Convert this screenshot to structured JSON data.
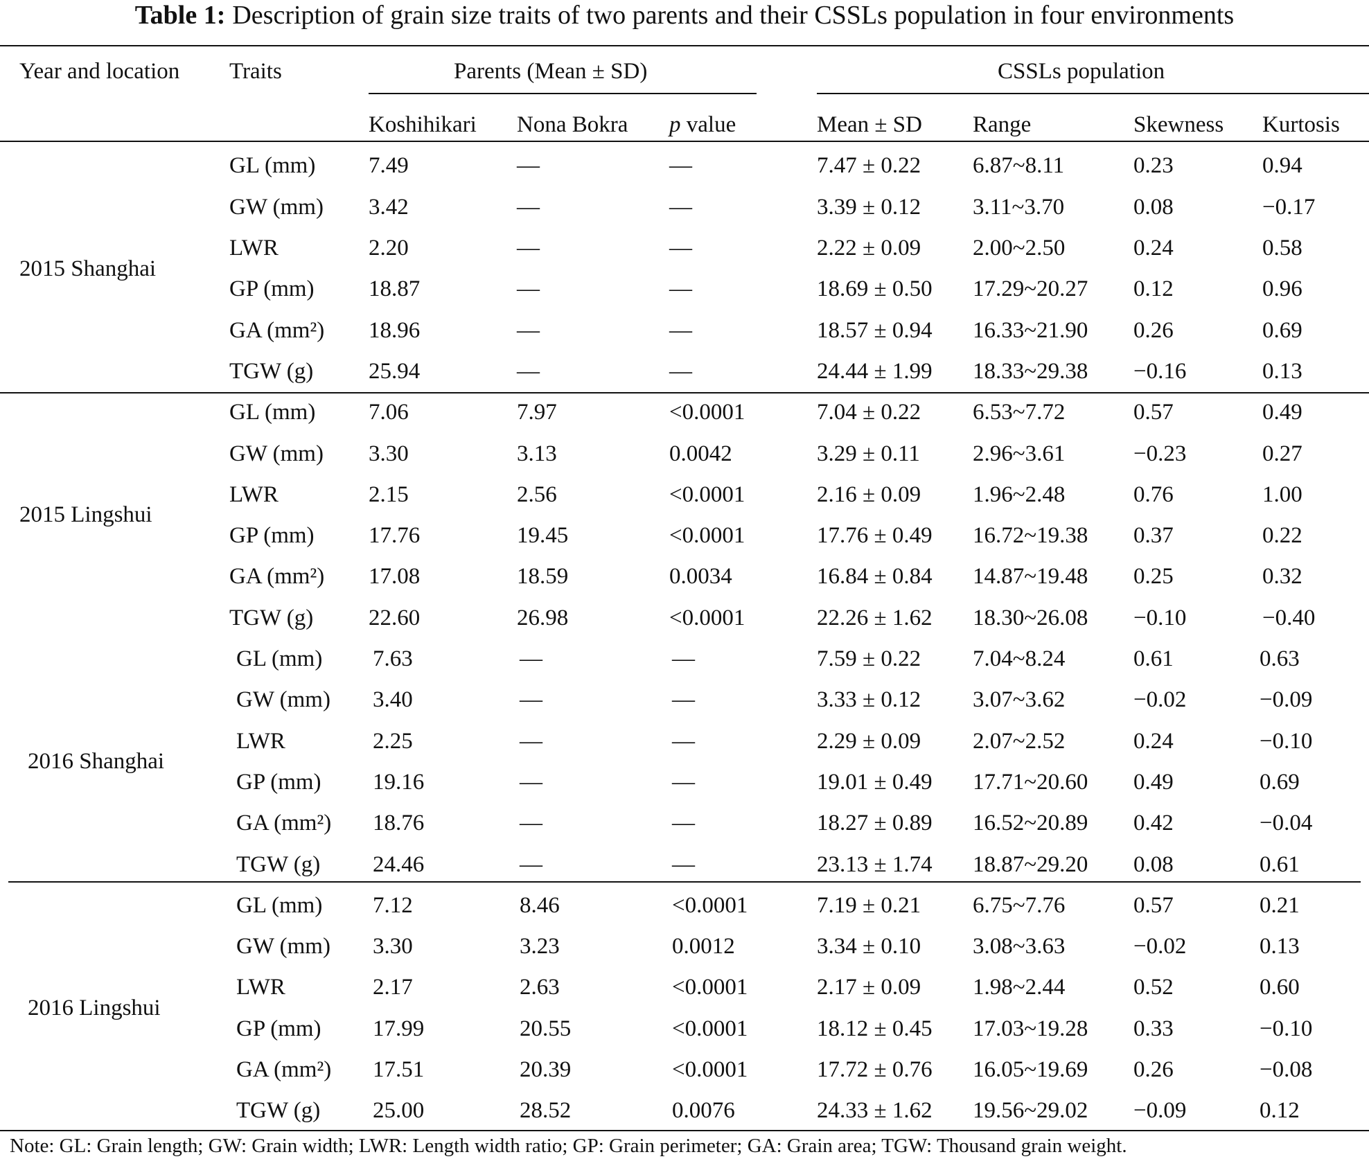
{
  "header": {
    "label": "Table 1:",
    "title": "Description of grain size traits of two parents and their CSSLs population in four environments"
  },
  "columns": {
    "year_location": "Year and location",
    "traits": "Traits",
    "parents": "Parents (Mean ± SD)",
    "cssls": "CSSLs population",
    "koshihikari": "Koshihikari",
    "nona_bokra": "Nona Bokra",
    "p_value_italic": "p",
    "p_value_text": "value",
    "mean_sd": "Mean ± SD",
    "range": "Range",
    "skewness": "Skewness",
    "kurtosis": "Kurtosis"
  },
  "table": {
    "groups": [
      {
        "location": "2015 Shanghai",
        "rows": [
          [
            "GL (mm)",
            "7.49",
            "—",
            "—",
            "7.47 ± 0.22",
            "6.87~8.11",
            "0.23",
            "0.94"
          ],
          [
            "GW (mm)",
            "3.42",
            "—",
            "—",
            "3.39 ± 0.12",
            "3.11~3.70",
            "0.08",
            "−0.17"
          ],
          [
            "LWR",
            "2.20",
            "—",
            "—",
            "2.22 ± 0.09",
            "2.00~2.50",
            "0.24",
            "0.58"
          ],
          [
            "GP (mm)",
            "18.87",
            "—",
            "—",
            "18.69 ± 0.50",
            "17.29~20.27",
            "0.12",
            "0.96"
          ],
          [
            "GA (mm²)",
            "18.96",
            "—",
            "—",
            "18.57 ± 0.94",
            "16.33~21.90",
            "0.26",
            "0.69"
          ],
          [
            "TGW (g)",
            "25.94",
            "—",
            "—",
            "24.44 ± 1.99",
            "18.33~29.38",
            "−0.16",
            "0.13"
          ]
        ]
      },
      {
        "location": "2015 Lingshui",
        "rows": [
          [
            "GL (mm)",
            "7.06",
            "7.97",
            "<0.0001",
            "7.04 ± 0.22",
            "6.53~7.72",
            "0.57",
            "0.49"
          ],
          [
            "GW (mm)",
            "3.30",
            "3.13",
            "0.0042",
            "3.29 ± 0.11",
            "2.96~3.61",
            "−0.23",
            "0.27"
          ],
          [
            "LWR",
            "2.15",
            "2.56",
            "<0.0001",
            "2.16 ± 0.09",
            "1.96~2.48",
            "0.76",
            "1.00"
          ],
          [
            "GP (mm)",
            "17.76",
            "19.45",
            "<0.0001",
            "17.76 ± 0.49",
            "16.72~19.38",
            "0.37",
            "0.22"
          ],
          [
            "GA (mm²)",
            "17.08",
            "18.59",
            "0.0034",
            "16.84 ± 0.84",
            "14.87~19.48",
            "0.25",
            "0.32"
          ],
          [
            "TGW (g)",
            "22.60",
            "26.98",
            "<0.0001",
            "22.26 ± 1.62",
            "18.30~26.08",
            "−0.10",
            "−0.40"
          ]
        ]
      },
      {
        "location": "2016 Shanghai",
        "rows": [
          [
            "GL (mm)",
            "7.63",
            "—",
            "—",
            "7.59 ± 0.22",
            "7.04~8.24",
            "0.61",
            "0.63"
          ],
          [
            "GW (mm)",
            "3.40",
            "—",
            "—",
            "3.33 ± 0.12",
            "3.07~3.62",
            "−0.02",
            "−0.09"
          ],
          [
            "LWR",
            "2.25",
            "—",
            "—",
            "2.29 ± 0.09",
            "2.07~2.52",
            "0.24",
            "−0.10"
          ],
          [
            "GP (mm)",
            "19.16",
            "—",
            "—",
            "19.01 ± 0.49",
            "17.71~20.60",
            "0.49",
            "0.69"
          ],
          [
            "GA (mm²)",
            "18.76",
            "—",
            "—",
            "18.27 ± 0.89",
            "16.52~20.89",
            "0.42",
            "−0.04"
          ],
          [
            "TGW (g)",
            "24.46",
            "—",
            "—",
            "23.13 ± 1.74",
            "18.87~29.20",
            "0.08",
            "0.61"
          ]
        ]
      },
      {
        "location": "2016 Lingshui",
        "rows": [
          [
            "GL (mm)",
            "7.12",
            "8.46",
            "<0.0001",
            "7.19 ± 0.21",
            "6.75~7.76",
            "0.57",
            "0.21"
          ],
          [
            "GW (mm)",
            "3.30",
            "3.23",
            "0.0012",
            "3.34 ± 0.10",
            "3.08~3.63",
            "−0.02",
            "0.13"
          ],
          [
            "LWR",
            "2.17",
            "2.63",
            "<0.0001",
            "2.17 ± 0.09",
            "1.98~2.44",
            "0.52",
            "0.60"
          ],
          [
            "GP (mm)",
            "17.99",
            "20.55",
            "<0.0001",
            "18.12 ± 0.45",
            "17.03~19.28",
            "0.33",
            "−0.10"
          ],
          [
            "GA (mm²)",
            "17.51",
            "20.39",
            "<0.0001",
            "17.72 ± 0.76",
            "16.05~19.69",
            "0.26",
            "−0.08"
          ],
          [
            "TGW (g)",
            "25.00",
            "28.52",
            "0.0076",
            "24.33 ± 1.62",
            "19.56~29.02",
            "−0.09",
            "0.12"
          ]
        ]
      }
    ]
  },
  "note": "Note: GL: Grain length; GW: Grain width; LWR: Length width ratio; GP: Grain perimeter; GA: Grain area; TGW: Thousand grain weight."
}
